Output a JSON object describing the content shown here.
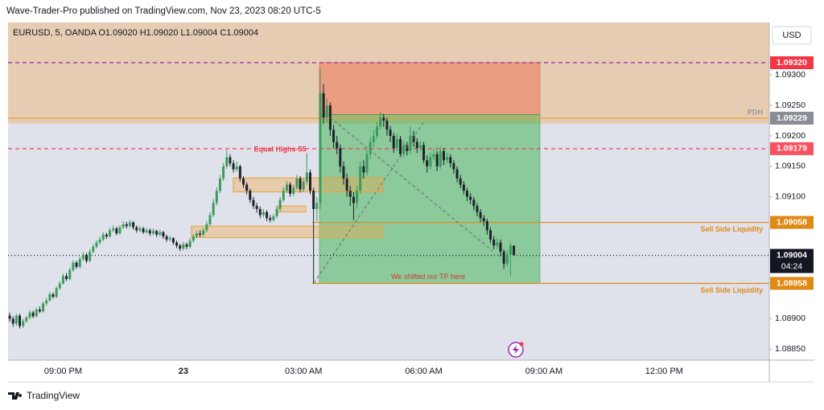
{
  "page": {
    "credit": "Wave-Trader-Pro published on TradingView.com, Nov 23, 2023 08:20 UTC-5",
    "footer": "TradingView"
  },
  "chart_data": {
    "type": "candlestick",
    "header": "EURUSD, 5, OANDA  O1.09020  H1.09020  L1.09004  C1.09004",
    "currency": "USD",
    "annotation": "We shifted our TP here",
    "up_color": "#3a9b5c",
    "down_color": "#1e222d",
    "ylim": [
      1.08832,
      1.09386
    ],
    "yticks": [
      {
        "value": 1.0885,
        "label": "1.08850"
      },
      {
        "value": 1.089,
        "label": "1.08900"
      },
      {
        "value": 1.091,
        "label": "1.09100"
      },
      {
        "value": 1.0915,
        "label": "1.09150"
      },
      {
        "value": 1.092,
        "label": "1.09200"
      },
      {
        "value": 1.0925,
        "label": "1.09250"
      },
      {
        "value": 1.093,
        "label": "1.09300"
      }
    ],
    "categories": [
      null,
      null,
      null,
      null,
      null,
      null,
      null,
      null,
      null,
      null,
      null,
      null,
      null,
      null,
      null,
      null,
      "09:00 PM",
      null,
      null,
      null,
      null,
      null,
      null,
      null,
      null,
      null,
      null,
      null,
      null,
      null,
      null,
      null,
      null,
      null,
      null,
      null,
      null,
      null,
      null,
      null,
      null,
      null,
      null,
      null,
      null,
      null,
      null,
      null,
      null,
      null,
      null,
      null,
      "23",
      null,
      null,
      null,
      null,
      null,
      null,
      null,
      null,
      null,
      null,
      null,
      null,
      null,
      null,
      null,
      null,
      null,
      null,
      null,
      null,
      null,
      null,
      null,
      null,
      null,
      null,
      null,
      null,
      null,
      null,
      null,
      null,
      null,
      null,
      null,
      "03:00 AM",
      null,
      null,
      null,
      null,
      null,
      null,
      null,
      null,
      null,
      null,
      null,
      null,
      null,
      null,
      null,
      null,
      null,
      null,
      null,
      null,
      null,
      null,
      null,
      null,
      null,
      null,
      null,
      null,
      null,
      null,
      null,
      null,
      null,
      null,
      null,
      "06:00 AM",
      null,
      null,
      null,
      null,
      null,
      null,
      null,
      null,
      null,
      null,
      null,
      null,
      null,
      null,
      null,
      null,
      null,
      null,
      null,
      null,
      null,
      null,
      null,
      null,
      null,
      null,
      null,
      null,
      null,
      null,
      null,
      null,
      null,
      null,
      null,
      "09:00 AM",
      null,
      null,
      null,
      null,
      null,
      null,
      null,
      null,
      null,
      null,
      null,
      null,
      null,
      null,
      null,
      null,
      null,
      null,
      null,
      null,
      null,
      null,
      null,
      null,
      null,
      null,
      null,
      null,
      null,
      null,
      null,
      null,
      null,
      null,
      null,
      "12:00 PM",
      null,
      null,
      null,
      null,
      null,
      null,
      null,
      null,
      null,
      null,
      null,
      null,
      null,
      null,
      null,
      null,
      null,
      null,
      null,
      null,
      null,
      null,
      null,
      null,
      null,
      null,
      null,
      null,
      null,
      null,
      null
    ],
    "ohlc": [
      [
        1.08905,
        1.0891,
        1.08895,
        1.089
      ],
      [
        1.089,
        1.08904,
        1.08887,
        1.08892
      ],
      [
        1.08892,
        1.08908,
        1.08888,
        1.08905
      ],
      [
        1.08905,
        1.08908,
        1.08884,
        1.08888
      ],
      [
        1.08888,
        1.089,
        1.08885,
        1.08896
      ],
      [
        1.08896,
        1.08905,
        1.08893,
        1.08902
      ],
      [
        1.08902,
        1.08914,
        1.08899,
        1.0891
      ],
      [
        1.0891,
        1.08913,
        1.08901,
        1.08904
      ],
      [
        1.08904,
        1.08918,
        1.08902,
        1.08915
      ],
      [
        1.08915,
        1.0892,
        1.08909,
        1.08912
      ],
      [
        1.08912,
        1.08928,
        1.0891,
        1.08925
      ],
      [
        1.08925,
        1.08934,
        1.08921,
        1.0893
      ],
      [
        1.0893,
        1.08944,
        1.08928,
        1.0894
      ],
      [
        1.0894,
        1.08943,
        1.08933,
        1.08936
      ],
      [
        1.08936,
        1.08953,
        1.08934,
        1.0895
      ],
      [
        1.0895,
        1.08962,
        1.08947,
        1.08958
      ],
      [
        1.08958,
        1.08974,
        1.08956,
        1.0897
      ],
      [
        1.0897,
        1.08975,
        1.08962,
        1.08965
      ],
      [
        1.08965,
        1.08984,
        1.08963,
        1.0898
      ],
      [
        1.0898,
        1.08996,
        1.08977,
        1.08992
      ],
      [
        1.08992,
        1.08995,
        1.08982,
        1.08985
      ],
      [
        1.08985,
        1.09002,
        1.08982,
        1.08998
      ],
      [
        1.08998,
        1.09009,
        1.08995,
        1.09005
      ],
      [
        1.09005,
        1.09008,
        1.08991,
        1.08995
      ],
      [
        1.08995,
        1.09014,
        1.08993,
        1.0901
      ],
      [
        1.0901,
        1.09022,
        1.09007,
        1.09018
      ],
      [
        1.09018,
        1.09029,
        1.09015,
        1.09025
      ],
      [
        1.09025,
        1.09035,
        1.09022,
        1.0903
      ],
      [
        1.0903,
        1.09042,
        1.09027,
        1.09038
      ],
      [
        1.09038,
        1.09041,
        1.09031,
        1.09035
      ],
      [
        1.09035,
        1.09049,
        1.09033,
        1.09045
      ],
      [
        1.09045,
        1.09053,
        1.09042,
        1.09048
      ],
      [
        1.09048,
        1.09051,
        1.09037,
        1.0904
      ],
      [
        1.0904,
        1.09054,
        1.09038,
        1.0905
      ],
      [
        1.0905,
        1.0906,
        1.09047,
        1.09055
      ],
      [
        1.09055,
        1.09059,
        1.09048,
        1.09052
      ],
      [
        1.09052,
        1.09062,
        1.09049,
        1.09058
      ],
      [
        1.09058,
        1.0906,
        1.09046,
        1.0905
      ],
      [
        1.0905,
        1.09053,
        1.09041,
        1.09045
      ],
      [
        1.09045,
        1.09052,
        1.09042,
        1.09048
      ],
      [
        1.09048,
        1.09051,
        1.09039,
        1.09042
      ],
      [
        1.09042,
        1.09049,
        1.09039,
        1.09045
      ],
      [
        1.09045,
        1.09048,
        1.09036,
        1.0904
      ],
      [
        1.0904,
        1.09048,
        1.09037,
        1.09044
      ],
      [
        1.09044,
        1.09046,
        1.09034,
        1.09038
      ],
      [
        1.09038,
        1.09046,
        1.09035,
        1.09042
      ],
      [
        1.09042,
        1.09044,
        1.09031,
        1.09035
      ],
      [
        1.09035,
        1.09038,
        1.09026,
        1.0903
      ],
      [
        1.0903,
        1.09036,
        1.09027,
        1.09032
      ],
      [
        1.09032,
        1.09034,
        1.09021,
        1.09025
      ],
      [
        1.09025,
        1.09028,
        1.09016,
        1.0902
      ],
      [
        1.0902,
        1.09023,
        1.09011,
        1.09015
      ],
      [
        1.09015,
        1.09026,
        1.09012,
        1.09022
      ],
      [
        1.09022,
        1.09025,
        1.09014,
        1.09018
      ],
      [
        1.09018,
        1.09032,
        1.09015,
        1.09028
      ],
      [
        1.09028,
        1.09039,
        1.09025,
        1.09035
      ],
      [
        1.09035,
        1.09044,
        1.09032,
        1.0904
      ],
      [
        1.0904,
        1.09045,
        1.09034,
        1.09038
      ],
      [
        1.09038,
        1.09049,
        1.09035,
        1.09045
      ],
      [
        1.09045,
        1.0906,
        1.09042,
        1.09055
      ],
      [
        1.09055,
        1.09075,
        1.09052,
        1.0907
      ],
      [
        1.0907,
        1.09096,
        1.09067,
        1.0909
      ],
      [
        1.0909,
        1.09116,
        1.09086,
        1.0911
      ],
      [
        1.0911,
        1.09136,
        1.09106,
        1.0913
      ],
      [
        1.0913,
        1.09156,
        1.09126,
        1.0915
      ],
      [
        1.0915,
        1.09177,
        1.09146,
        1.09165
      ],
      [
        1.09165,
        1.0917,
        1.0915,
        1.09155
      ],
      [
        1.09155,
        1.0916,
        1.0914,
        1.09145
      ],
      [
        1.09145,
        1.09158,
        1.09141,
        1.0915
      ],
      [
        1.0915,
        1.09153,
        1.09125,
        1.0913
      ],
      [
        1.0913,
        1.09134,
        1.09115,
        1.0912
      ],
      [
        1.0912,
        1.09124,
        1.09104,
        1.0911
      ],
      [
        1.0911,
        1.09113,
        1.0909,
        1.09095
      ],
      [
        1.09095,
        1.091,
        1.0908,
        1.09085
      ],
      [
        1.09085,
        1.0909,
        1.09074,
        1.0908
      ],
      [
        1.0908,
        1.09084,
        1.09065,
        1.0907
      ],
      [
        1.0907,
        1.0908,
        1.09066,
        1.09075
      ],
      [
        1.09075,
        1.09078,
        1.0906,
        1.09065
      ],
      [
        1.09065,
        1.0907,
        1.09058,
        1.09062
      ],
      [
        1.09062,
        1.09072,
        1.09059,
        1.09068
      ],
      [
        1.09068,
        1.09085,
        1.09065,
        1.0908
      ],
      [
        1.0908,
        1.091,
        1.09076,
        1.09095
      ],
      [
        1.09095,
        1.09116,
        1.09091,
        1.0911
      ],
      [
        1.0911,
        1.09126,
        1.09106,
        1.0912
      ],
      [
        1.0912,
        1.09124,
        1.091,
        1.09105
      ],
      [
        1.09105,
        1.0912,
        1.09101,
        1.09115
      ],
      [
        1.09115,
        1.09136,
        1.09111,
        1.0913
      ],
      [
        1.0913,
        1.09134,
        1.09107,
        1.09112
      ],
      [
        1.09112,
        1.0913,
        1.09108,
        1.09125
      ],
      [
        1.09125,
        1.09172,
        1.0912,
        1.0914
      ],
      [
        1.0914,
        1.09145,
        1.09104,
        1.0911
      ],
      [
        1.0911,
        1.09115,
        1.08958,
        1.0908
      ],
      [
        1.0908,
        1.091,
        1.0906,
        1.0909
      ],
      [
        1.0909,
        1.0931,
        1.0908,
        1.0927
      ],
      [
        1.0927,
        1.09285,
        1.0922,
        1.0923
      ],
      [
        1.0923,
        1.09262,
        1.09222,
        1.0925
      ],
      [
        1.0925,
        1.09255,
        1.092,
        1.0921
      ],
      [
        1.0921,
        1.09218,
        1.0918,
        1.0919
      ],
      [
        1.0919,
        1.092,
        1.0917,
        1.0918
      ],
      [
        1.0918,
        1.09186,
        1.0914,
        1.0915
      ],
      [
        1.0915,
        1.09158,
        1.0912,
        1.0913
      ],
      [
        1.0913,
        1.09138,
        1.091,
        1.0911
      ],
      [
        1.0911,
        1.09118,
        1.09085,
        1.091
      ],
      [
        1.091,
        1.09108,
        1.09062,
        1.0909
      ],
      [
        1.0909,
        1.09118,
        1.09082,
        1.0911
      ],
      [
        1.0911,
        1.09158,
        1.09105,
        1.0915
      ],
      [
        1.0915,
        1.0916,
        1.0913,
        1.0914
      ],
      [
        1.0914,
        1.09178,
        1.09135,
        1.0917
      ],
      [
        1.0917,
        1.09198,
        1.09162,
        1.0919
      ],
      [
        1.0919,
        1.0921,
        1.09182,
        1.092
      ],
      [
        1.092,
        1.09222,
        1.09195,
        1.09215
      ],
      [
        1.09215,
        1.0924,
        1.0921,
        1.0923
      ],
      [
        1.0923,
        1.09236,
        1.09215,
        1.09225
      ],
      [
        1.09225,
        1.0923,
        1.092,
        1.0921
      ],
      [
        1.0921,
        1.09216,
        1.0919,
        1.092
      ],
      [
        1.092,
        1.09205,
        1.09172,
        1.0918
      ],
      [
        1.0918,
        1.09203,
        1.09175,
        1.09195
      ],
      [
        1.09195,
        1.092,
        1.09165,
        1.0917
      ],
      [
        1.0917,
        1.09192,
        1.09165,
        1.09185
      ],
      [
        1.09185,
        1.0919,
        1.09168,
        1.09175
      ],
      [
        1.09175,
        1.09215,
        1.0917,
        1.092
      ],
      [
        1.092,
        1.09208,
        1.09182,
        1.0919
      ],
      [
        1.0919,
        1.09196,
        1.09172,
        1.0918
      ],
      [
        1.0918,
        1.09192,
        1.09175,
        1.09185
      ],
      [
        1.09185,
        1.0919,
        1.09155,
        1.0916
      ],
      [
        1.0916,
        1.09168,
        1.0914,
        1.0915
      ],
      [
        1.0915,
        1.09172,
        1.09145,
        1.09165
      ],
      [
        1.09165,
        1.09178,
        1.0916,
        1.0917
      ],
      [
        1.0917,
        1.09175,
        1.09142,
        1.0915
      ],
      [
        1.0915,
        1.09182,
        1.09146,
        1.09175
      ],
      [
        1.09175,
        1.0918,
        1.09152,
        1.0916
      ],
      [
        1.0916,
        1.09172,
        1.09155,
        1.09165
      ],
      [
        1.09165,
        1.0917,
        1.09148,
        1.09155
      ],
      [
        1.09155,
        1.0916,
        1.09138,
        1.09145
      ],
      [
        1.09145,
        1.0915,
        1.09124,
        1.0913
      ],
      [
        1.0913,
        1.09136,
        1.09114,
        1.0912
      ],
      [
        1.0912,
        1.09126,
        1.09104,
        1.0911
      ],
      [
        1.0911,
        1.09115,
        1.09093,
        1.091
      ],
      [
        1.091,
        1.09106,
        1.09088,
        1.09095
      ],
      [
        1.09095,
        1.091,
        1.09078,
        1.09085
      ],
      [
        1.09085,
        1.0909,
        1.09068,
        1.09075
      ],
      [
        1.09075,
        1.0908,
        1.09058,
        1.09065
      ],
      [
        1.09065,
        1.0907,
        1.09052,
        1.0906
      ],
      [
        1.0906,
        1.09064,
        1.09038,
        1.09045
      ],
      [
        1.09045,
        1.0905,
        1.09024,
        1.0903
      ],
      [
        1.0903,
        1.09036,
        1.09014,
        1.0902
      ],
      [
        1.0902,
        1.09032,
        1.09015,
        1.09025
      ],
      [
        1.09025,
        1.0903,
        1.09002,
        1.0901
      ],
      [
        1.0901,
        1.09014,
        1.08982,
        1.0899
      ],
      [
        1.0899,
        1.09012,
        1.08985,
        1.09005
      ],
      [
        1.09005,
        1.09025,
        1.0897,
        1.0902
      ],
      [
        1.0902,
        1.0902,
        1.09004,
        1.09004
      ],
      null,
      null,
      null,
      null,
      null,
      null,
      null,
      null,
      null,
      null,
      null,
      null,
      null,
      null,
      null,
      null,
      null,
      null,
      null,
      null,
      null,
      null,
      null,
      null,
      null,
      null,
      null,
      null,
      null,
      null,
      null,
      null,
      null,
      null,
      null,
      null,
      null,
      null,
      null,
      null,
      null,
      null,
      null,
      null,
      null,
      null,
      null,
      null,
      null,
      null,
      null,
      null,
      null,
      null,
      null,
      null,
      null,
      null,
      null,
      null,
      null,
      null,
      null,
      null,
      null,
      null,
      null,
      null,
      null,
      null,
      null,
      null,
      null,
      null,
      null,
      null
    ],
    "zones": [
      {
        "from": 1.0922,
        "to": 1.09386,
        "color": "rgba(240,178,110,0.45)"
      }
    ],
    "order_blocks": [
      {
        "from": 1.09108,
        "to": 1.09131,
        "color": "rgba(240,170,80,0.4)"
      },
      {
        "from": 1.09033,
        "to": 1.09052,
        "color": "rgba(240,170,80,0.4)"
      },
      {
        "from": 1.09075,
        "to": 1.09085,
        "color": "rgba(240,170,80,0.4)"
      }
    ],
    "position": {
      "stop": 1.0932,
      "entry": 1.09235,
      "target": 1.08958,
      "stop_color": "rgba(242,100,70,0.45)",
      "target_color": "rgba(40,170,60,0.45)"
    },
    "levels": [
      {
        "value": 1.0932,
        "label": "1.09320",
        "badge": "#f23645",
        "line": "#9c27b0",
        "style": "dashed"
      },
      {
        "value": 1.09229,
        "label": "1.09229",
        "badge": "#8a8d96",
        "line": "#e8a33d",
        "style": "solid",
        "note": "PDH",
        "note_color": "#9598a1"
      },
      {
        "value": 1.09179,
        "label": "1.09179",
        "badge": "#f7525f",
        "line": "#f23645",
        "style": "dashed",
        "note": "Equal Highs-55",
        "note_color": "#f23645"
      },
      {
        "value": 1.09058,
        "label": "1.09058",
        "badge": "#e08a16",
        "line": "#e08a16",
        "style": "ray",
        "note": "Sell Side Liquidity",
        "note_color": "#e08a16"
      },
      {
        "value": 1.09004,
        "label": "1.09004",
        "sublabel": "04:24",
        "badge": "#131722",
        "line": "#131722",
        "style": "dotted"
      },
      {
        "value": 1.08958,
        "label": "1.08958",
        "badge": "#e08a16",
        "line": "#e08a16",
        "style": "ray",
        "note": "Sell Side Liquidity",
        "note_color": "#e08a16"
      }
    ]
  }
}
